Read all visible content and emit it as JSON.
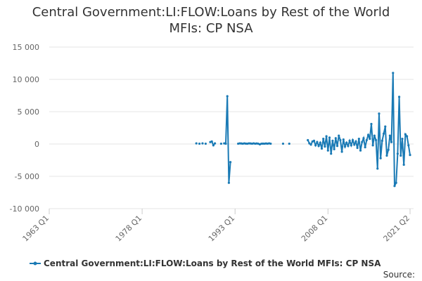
{
  "chart_data": {
    "type": "line",
    "title": "Central Government:LI:FLOW:Loans by Rest of the World MFIs: CP NSA",
    "source": "Source:",
    "x": [
      1986.75,
      1987,
      1987.25,
      1987.5,
      1987.75,
      1988,
      1988.25,
      1988.5,
      1989,
      1989.25,
      1989.5,
      1989.75,
      1990,
      1990.75,
      1991,
      1991.25,
      1991.5,
      1991.75,
      1992,
      1992.25,
      1993,
      1993.5,
      1993.75,
      1994,
      1994.25,
      1994.5,
      1994.75,
      1995,
      1995.25,
      1995.5,
      1995.75,
      1996,
      1996.25,
      1996.5,
      1996.75,
      1997,
      1997.25,
      1997.5,
      1997.75,
      1998,
      1998.25,
      1998.5,
      1998.75,
      1999,
      2000.75,
      2001,
      2001.75,
      2002,
      2004.75,
      2005,
      2005.25,
      2005.5,
      2005.75,
      2006,
      2006.25,
      2006.5,
      2006.75,
      2007,
      2007.25,
      2007.5,
      2007.75,
      2008,
      2008.25,
      2008.5,
      2008.75,
      2009,
      2009.25,
      2009.5,
      2009.75,
      2010,
      2010.25,
      2010.5,
      2010.75,
      2011,
      2011.25,
      2011.5,
      2011.75,
      2012,
      2012.25,
      2012.5,
      2012.75,
      2013,
      2013.25,
      2013.5,
      2013.75,
      2014,
      2014.25,
      2014.5,
      2014.75,
      2015,
      2015.25,
      2015.5,
      2015.75,
      2016,
      2016.25,
      2016.5,
      2016.75,
      2017,
      2017.25,
      2017.5,
      2017.75,
      2018,
      2018.25,
      2018.5,
      2018.75,
      2019,
      2019.25,
      2019.5,
      2019.75,
      2020,
      2020.25,
      2020.5,
      2020.75,
      2021,
      2021.25
    ],
    "series": [
      {
        "name": "Central Government:LI:FLOW:Loans by Rest of the World MFIs: CP NSA",
        "color": "#1a7ab5",
        "values": [
          100,
          null,
          50,
          null,
          100,
          null,
          50,
          null,
          300,
          400,
          -200,
          100,
          null,
          50,
          null,
          100,
          50,
          7400,
          -6000,
          -2800,
          null,
          50,
          100,
          80,
          50,
          100,
          60,
          50,
          100,
          80,
          50,
          100,
          50,
          80,
          50,
          -50,
          50,
          60,
          50,
          80,
          50,
          100,
          50,
          null,
          50,
          null,
          50,
          null,
          600,
          100,
          -100,
          400,
          500,
          -200,
          300,
          -300,
          200,
          -700,
          800,
          -400,
          1200,
          -1000,
          1000,
          -1500,
          500,
          -800,
          900,
          -300,
          1300,
          600,
          -1200,
          700,
          -400,
          200,
          -300,
          500,
          -200,
          600,
          -100,
          400,
          -600,
          800,
          -1000,
          300,
          900,
          -500,
          600,
          1400,
          800,
          3100,
          -200,
          1300,
          600,
          -3800,
          4700,
          -2200,
          500,
          1600,
          2700,
          -1800,
          -900,
          1300,
          300,
          11000,
          -6500,
          -6000,
          -1500,
          7300,
          -1800,
          800,
          -3200,
          1500,
          1200,
          -200,
          -1700
        ]
      }
    ],
    "xlim": [
      1963,
      2021.25
    ],
    "xticks": [
      {
        "value": 1963,
        "label": "1963 Q1"
      },
      {
        "value": 1978,
        "label": "1978 Q1"
      },
      {
        "value": 1993,
        "label": "1993 Q1"
      },
      {
        "value": 2008,
        "label": "2008 Q1"
      },
      {
        "value": 2021.25,
        "label": "2021 Q2"
      }
    ],
    "ylim": [
      -10000,
      15000
    ],
    "yticks": [
      {
        "value": -10000,
        "label": "-10 000"
      },
      {
        "value": -5000,
        "label": "-5 000"
      },
      0,
      {
        "value": 5000,
        "label": "5 000"
      },
      {
        "value": 10000,
        "label": "10 000"
      },
      {
        "value": 15000,
        "label": "15 000"
      }
    ],
    "grid": true
  }
}
